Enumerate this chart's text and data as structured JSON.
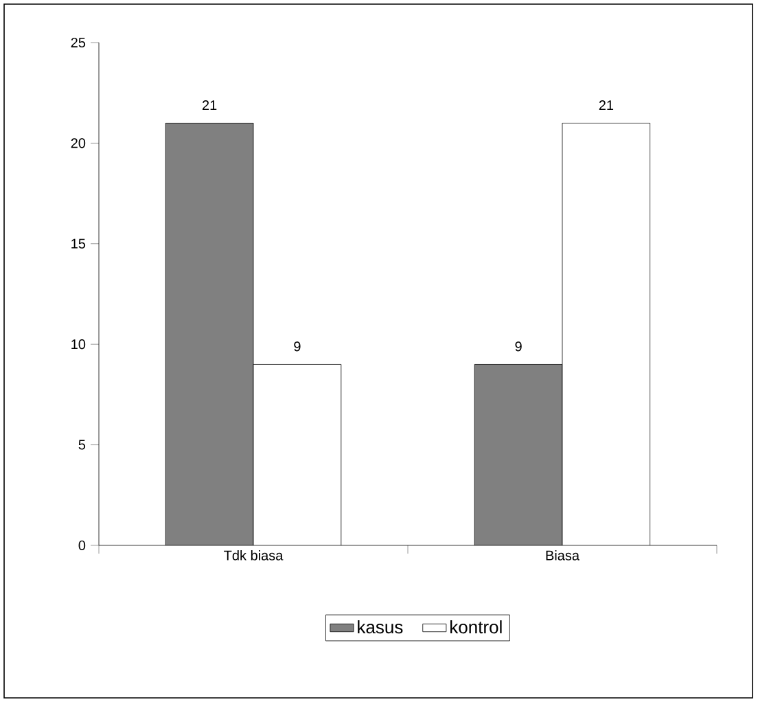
{
  "chart_data": {
    "type": "bar",
    "categories": [
      "Tdk biasa",
      "Biasa"
    ],
    "series": [
      {
        "name": "kasus",
        "color": "#808080",
        "values": [
          21,
          9
        ]
      },
      {
        "name": "kontrol",
        "color": "#ffffff",
        "values": [
          9,
          21
        ]
      }
    ],
    "ylim": [
      0,
      25
    ],
    "yticks": [
      0,
      5,
      10,
      15,
      20,
      25
    ],
    "data_labels": true,
    "legend": "bottom"
  }
}
